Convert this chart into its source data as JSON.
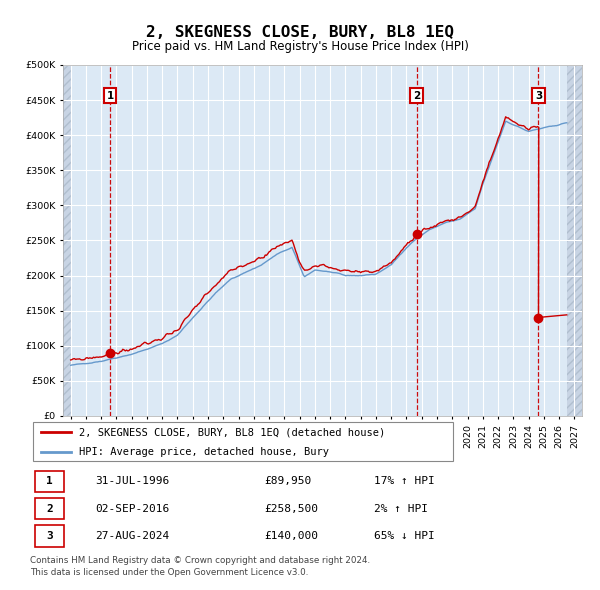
{
  "title": "2, SKEGNESS CLOSE, BURY, BL8 1EQ",
  "subtitle": "Price paid vs. HM Land Registry's House Price Index (HPI)",
  "legend_line1": "2, SKEGNESS CLOSE, BURY, BL8 1EQ (detached house)",
  "legend_line2": "HPI: Average price, detached house, Bury",
  "transactions": [
    {
      "label": "1",
      "date_str": "31-JUL-1996",
      "date_x": 1996.58,
      "price": 89950,
      "pct": "17%",
      "dir": "↑"
    },
    {
      "label": "2",
      "date_str": "02-SEP-2016",
      "date_x": 2016.67,
      "price": 258500,
      "pct": "2%",
      "dir": "↑"
    },
    {
      "label": "3",
      "date_str": "27-AUG-2024",
      "date_x": 2024.65,
      "price": 140000,
      "pct": "65%",
      "dir": "↓"
    }
  ],
  "footer_line1": "Contains HM Land Registry data © Crown copyright and database right 2024.",
  "footer_line2": "This data is licensed under the Open Government Licence v3.0.",
  "hpi_color": "#6699cc",
  "price_color": "#cc0000",
  "dot_color": "#cc0000",
  "bg_color": "#dce9f5",
  "grid_color": "#ffffff",
  "vline_color": "#cc0000",
  "ylim": [
    0,
    500000
  ],
  "xlim_start": 1993.5,
  "xlim_end": 2027.5,
  "yticks": [
    0,
    50000,
    100000,
    150000,
    200000,
    250000,
    300000,
    350000,
    400000,
    450000,
    500000
  ],
  "hpi_key_x": [
    1994.0,
    1995.0,
    1996.0,
    1997.0,
    1998.0,
    1999.0,
    2000.0,
    2001.0,
    2002.0,
    2003.5,
    2004.5,
    2005.5,
    2006.5,
    2007.5,
    2008.5,
    2009.3,
    2010.0,
    2011.0,
    2012.0,
    2013.0,
    2014.0,
    2015.0,
    2016.0,
    2016.67,
    2017.5,
    2018.5,
    2019.5,
    2020.5,
    2021.0,
    2021.5,
    2022.0,
    2022.5,
    2023.0,
    2023.5,
    2024.0,
    2024.5,
    2025.0,
    2026.0,
    2027.0
  ],
  "hpi_key_y": [
    72000,
    75000,
    78000,
    83000,
    88000,
    95000,
    103000,
    115000,
    140000,
    175000,
    195000,
    205000,
    215000,
    230000,
    240000,
    198000,
    208000,
    205000,
    200000,
    200000,
    202000,
    215000,
    240000,
    253000,
    265000,
    275000,
    280000,
    295000,
    330000,
    360000,
    390000,
    420000,
    415000,
    410000,
    405000,
    408000,
    410000,
    415000,
    420000
  ]
}
